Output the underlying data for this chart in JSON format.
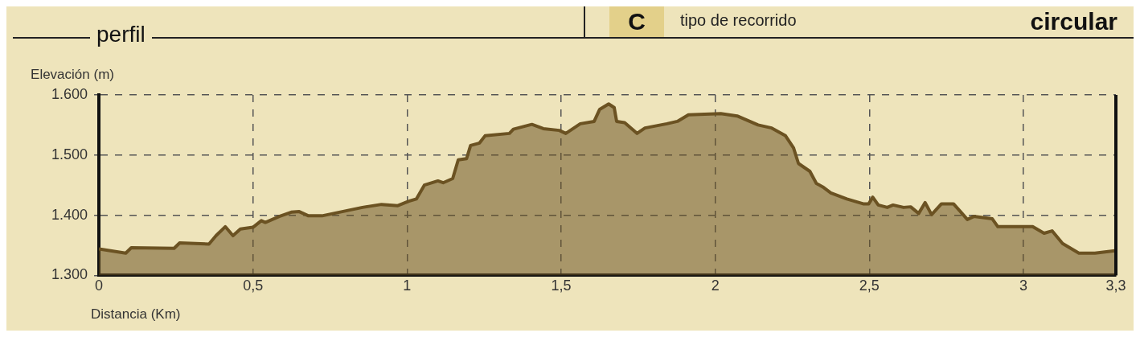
{
  "chart_data": {
    "type": "area",
    "title": "perfil",
    "xlabel": "Distancia (Km)",
    "ylabel": "Elevación (m)",
    "annotations": [
      "C",
      "tipo de recorrido",
      "circular"
    ],
    "x": [
      0,
      0.087,
      0.105,
      0.244,
      0.262,
      0.357,
      0.38,
      0.41,
      0.435,
      0.459,
      0.5,
      0.527,
      0.54,
      0.585,
      0.624,
      0.65,
      0.68,
      0.724,
      0.855,
      0.917,
      0.97,
      1.004,
      1.03,
      1.056,
      1.1,
      1.117,
      1.148,
      1.166,
      1.193,
      1.206,
      1.235,
      1.253,
      1.332,
      1.345,
      1.405,
      1.442,
      1.494,
      1.515,
      1.562,
      1.607,
      1.625,
      1.654,
      1.672,
      1.68,
      1.706,
      1.746,
      1.772,
      1.843,
      1.877,
      1.913,
      2.018,
      2.071,
      2.139,
      2.183,
      2.228,
      2.254,
      2.27,
      2.307,
      2.328,
      2.349,
      2.375,
      2.427,
      2.48,
      2.498,
      2.511,
      2.529,
      2.558,
      2.577,
      2.611,
      2.634,
      2.66,
      2.681,
      2.702,
      2.734,
      2.773,
      2.794,
      2.818,
      2.839,
      2.899,
      2.917,
      3.03,
      3.067,
      3.093,
      3.127,
      3.18,
      3.232,
      3.297
    ],
    "series": [
      {
        "color": "#6b5222",
        "values": [
          1344,
          1337,
          1346,
          1345,
          1354,
          1352,
          1366,
          1381,
          1366,
          1377,
          1380,
          1391,
          1388,
          1398,
          1405,
          1406,
          1399,
          1399,
          1413,
          1418,
          1416,
          1423,
          1427,
          1450,
          1457,
          1454,
          1461,
          1492,
          1494,
          1516,
          1520,
          1532,
          1536,
          1543,
          1551,
          1544,
          1541,
          1536,
          1552,
          1556,
          1576,
          1585,
          1579,
          1556,
          1554,
          1536,
          1545,
          1552,
          1556,
          1567,
          1569,
          1565,
          1550,
          1545,
          1532,
          1512,
          1486,
          1473,
          1453,
          1447,
          1437,
          1427,
          1419,
          1419,
          1430,
          1417,
          1413,
          1417,
          1413,
          1414,
          1403,
          1421,
          1401,
          1419,
          1419,
          1407,
          1393,
          1398,
          1394,
          1381,
          1381,
          1370,
          1374,
          1353,
          1337,
          1337,
          1341
        ]
      }
    ],
    "xlim": [
      0,
      3.3
    ],
    "ylim": [
      1300,
      1600
    ],
    "xticks": [
      0,
      {
        "value": 0.5,
        "label": "0,5"
      },
      1,
      {
        "value": 1.5,
        "label": "1,5"
      },
      2,
      {
        "value": 2.5,
        "label": "2,5"
      },
      3,
      {
        "value": 3.3,
        "label": "3,3"
      }
    ],
    "yticks": [
      {
        "value": 1300,
        "label": "1.300"
      },
      {
        "value": 1400,
        "label": "1.400"
      },
      {
        "value": 1500,
        "label": "1.500"
      },
      {
        "value": 1600,
        "label": "1.600"
      }
    ],
    "grid": true
  }
}
